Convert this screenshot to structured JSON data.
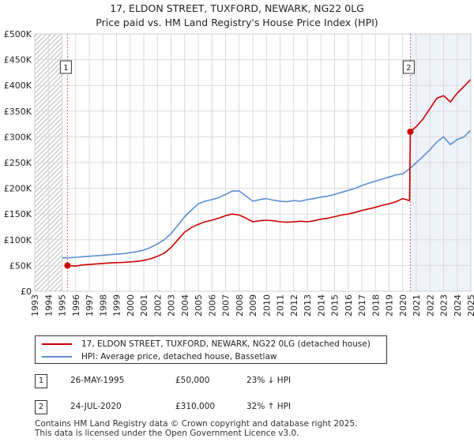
{
  "header": {
    "title_line1": "17, ELDON STREET, TUXFORD, NEWARK, NG22 0LG",
    "title_line2": "Price paid vs. HM Land Registry's House Price Index (HPI)"
  },
  "chart_data": {
    "type": "line",
    "title": "17, ELDON STREET, TUXFORD, NEWARK, NG22 0LG — Price paid vs. HM Land Registry's House Price Index (HPI)",
    "xlabel": "",
    "ylabel": "",
    "xlim": [
      1993,
      2025
    ],
    "ylim": [
      0,
      500000
    ],
    "x_ticks": [
      "1993",
      "1994",
      "1995",
      "1996",
      "1997",
      "1998",
      "1999",
      "2000",
      "2001",
      "2002",
      "2003",
      "2004",
      "2005",
      "2006",
      "2007",
      "2008",
      "2009",
      "2010",
      "2011",
      "2012",
      "2013",
      "2014",
      "2015",
      "2016",
      "2017",
      "2018",
      "2019",
      "2020",
      "2021",
      "2022",
      "2023",
      "2024",
      "2025"
    ],
    "y_ticks": [
      {
        "value": 0,
        "label": "£0"
      },
      {
        "value": 50000,
        "label": "£50K"
      },
      {
        "value": 100000,
        "label": "£100K"
      },
      {
        "value": 150000,
        "label": "£150K"
      },
      {
        "value": 200000,
        "label": "£200K"
      },
      {
        "value": 250000,
        "label": "£250K"
      },
      {
        "value": 300000,
        "label": "£300K"
      },
      {
        "value": 350000,
        "label": "£350K"
      },
      {
        "value": 400000,
        "label": "£400K"
      },
      {
        "value": 450000,
        "label": "£450K"
      },
      {
        "value": 500000,
        "label": "£500K"
      }
    ],
    "grid": true,
    "series": [
      {
        "name": "17, ELDON STREET, TUXFORD, NEWARK, NG22 0LG (detached house)",
        "color": "#cc0000",
        "x": [
          1995.4,
          1996,
          1996.5,
          1997,
          1997.5,
          1998,
          1998.5,
          1999,
          1999.5,
          2000,
          2000.5,
          2001,
          2001.5,
          2002,
          2002.5,
          2003,
          2003.5,
          2004,
          2004.5,
          2005,
          2005.5,
          2006,
          2006.5,
          2007,
          2007.5,
          2008,
          2008.5,
          2009,
          2009.5,
          2010,
          2010.5,
          2011,
          2011.5,
          2012,
          2012.5,
          2013,
          2013.5,
          2014,
          2014.5,
          2015,
          2015.5,
          2016,
          2016.5,
          2017,
          2017.5,
          2018,
          2018.5,
          2019,
          2019.5,
          2020,
          2020.5,
          2020.56,
          2021,
          2021.5,
          2022,
          2022.5,
          2023,
          2023.5,
          2024,
          2024.5,
          2025
        ],
        "values": [
          50000,
          49000,
          51000,
          52000,
          53000,
          54000,
          55000,
          55500,
          56000,
          57000,
          58000,
          60000,
          63000,
          68000,
          74000,
          85000,
          100000,
          115000,
          124000,
          130000,
          135000,
          138000,
          142000,
          147000,
          150000,
          148000,
          142000,
          135000,
          137000,
          138000,
          137000,
          135000,
          134000,
          135000,
          136000,
          135000,
          137000,
          140000,
          142000,
          145000,
          148000,
          150000,
          153000,
          157000,
          160000,
          163000,
          167000,
          170000,
          174000,
          180000,
          176000,
          310000,
          320000,
          335000,
          355000,
          375000,
          380000,
          368000,
          385000,
          398000,
          412000
        ]
      },
      {
        "name": "HPI: Average price, detached house, Bassetlaw",
        "color": "#5b8fd0",
        "x": [
          1995,
          1995.5,
          1996,
          1996.5,
          1997,
          1997.5,
          1998,
          1998.5,
          1999,
          1999.5,
          2000,
          2000.5,
          2001,
          2001.5,
          2002,
          2002.5,
          2003,
          2003.5,
          2004,
          2004.5,
          2005,
          2005.5,
          2006,
          2006.5,
          2007,
          2007.5,
          2008,
          2008.5,
          2009,
          2009.5,
          2010,
          2010.5,
          2011,
          2011.5,
          2012,
          2012.5,
          2013,
          2013.5,
          2014,
          2014.5,
          2015,
          2015.5,
          2016,
          2016.5,
          2017,
          2017.5,
          2018,
          2018.5,
          2019,
          2019.5,
          2020,
          2020.5,
          2021,
          2021.5,
          2022,
          2022.5,
          2023,
          2023.5,
          2024,
          2024.5,
          2025
        ],
        "values": [
          65000,
          65000,
          66000,
          67000,
          68000,
          69000,
          70000,
          71000,
          72000,
          73000,
          75000,
          77000,
          80000,
          85000,
          92000,
          100000,
          112000,
          128000,
          145000,
          158000,
          170000,
          175000,
          178000,
          182000,
          188000,
          195000,
          195000,
          185000,
          175000,
          178000,
          180000,
          177000,
          175000,
          174000,
          176000,
          175000,
          178000,
          180000,
          183000,
          185000,
          188000,
          192000,
          196000,
          200000,
          205000,
          210000,
          214000,
          218000,
          222000,
          226000,
          228000,
          238000,
          250000,
          262000,
          275000,
          290000,
          300000,
          285000,
          295000,
          300000,
          313000
        ]
      }
    ],
    "sale_markers": [
      {
        "label": "1",
        "x": 1995.4,
        "value": 50000
      },
      {
        "label": "2",
        "x": 2020.56,
        "value": 310000
      }
    ]
  },
  "legend": {
    "items": [
      {
        "label": "17, ELDON STREET, TUXFORD, NEWARK, NG22 0LG (detached house)",
        "color": "#cc0000"
      },
      {
        "label": "HPI: Average price, detached house, Bassetlaw",
        "color": "#5b8fd0"
      }
    ]
  },
  "transactions": [
    {
      "num": "1",
      "date": "26-MAY-1995",
      "price": "£50,000",
      "hpi": "23% ↓ HPI"
    },
    {
      "num": "2",
      "date": "24-JUL-2020",
      "price": "£310,000",
      "hpi": "32% ↑ HPI"
    }
  ],
  "footer": {
    "line1": "Contains HM Land Registry data © Crown copyright and database right 2025.",
    "line2": "This data is licensed under the Open Government Licence v3.0."
  }
}
